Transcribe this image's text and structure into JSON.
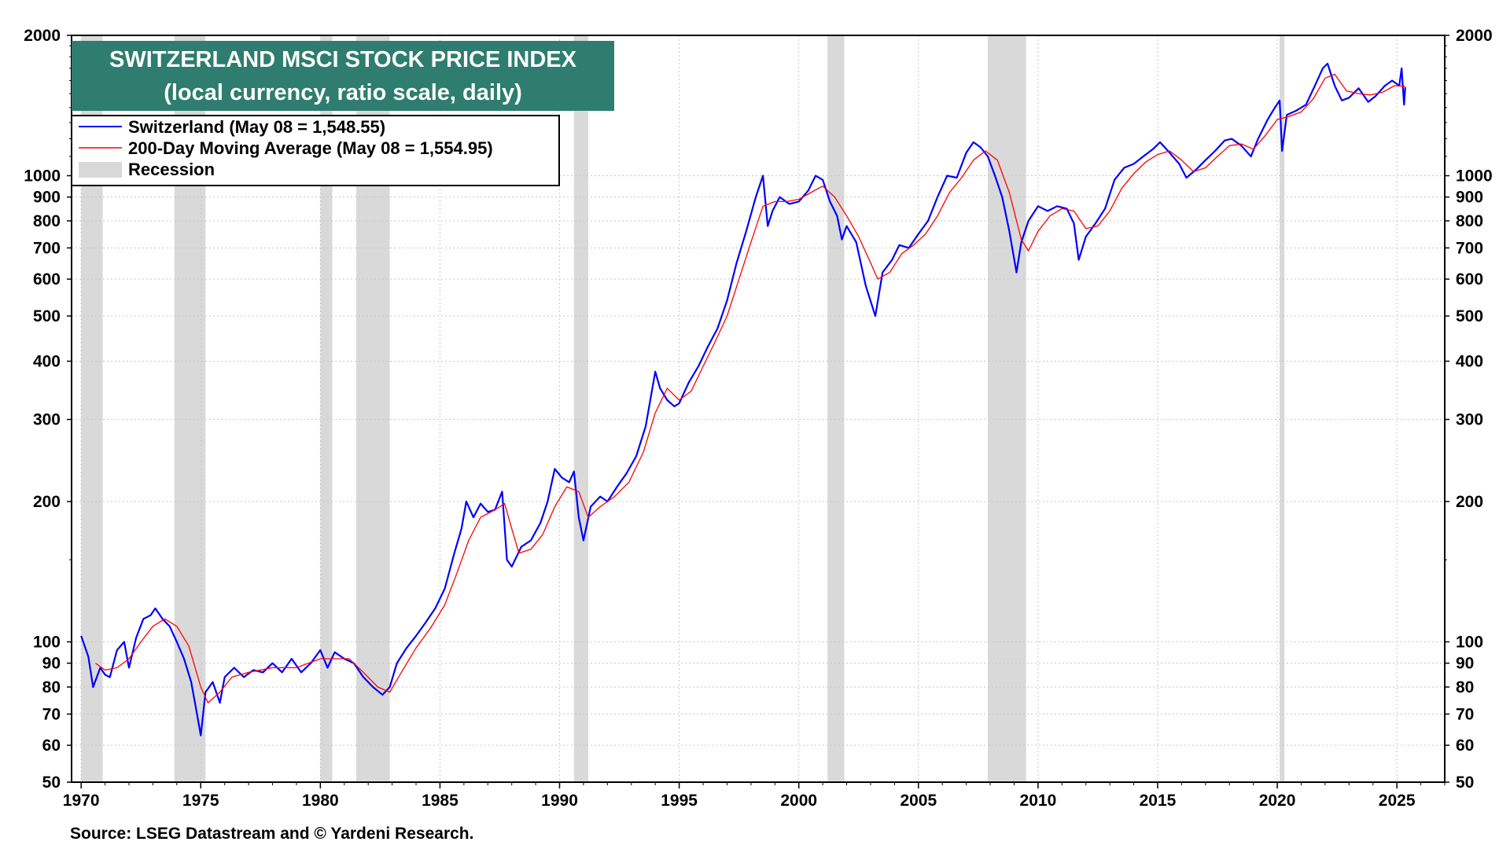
{
  "chart_data": {
    "type": "line",
    "title": "SWITZERLAND MSCI STOCK PRICE INDEX",
    "subtitle": "(local currency, ratio scale, daily)",
    "y_scale": "log",
    "ylim": [
      50,
      2000
    ],
    "xlim": [
      1969.6,
      2027.0
    ],
    "y_ticks": [
      50,
      60,
      70,
      80,
      90,
      100,
      200,
      300,
      400,
      500,
      600,
      700,
      800,
      900,
      1000,
      2000
    ],
    "y_tick_labels": [
      "50",
      "60",
      "70",
      "80",
      "90",
      "100",
      "200",
      "300",
      "400",
      "500",
      "600",
      "700",
      "800",
      "900",
      "1000",
      "2000"
    ],
    "x_ticks": [
      1970,
      1975,
      1980,
      1985,
      1990,
      1995,
      2000,
      2005,
      2010,
      2015,
      2020,
      2025
    ],
    "x_tick_labels": [
      "1970",
      "1975",
      "1980",
      "1985",
      "1990",
      "1995",
      "2000",
      "2005",
      "2010",
      "2015",
      "2020",
      "2025"
    ],
    "legend": {
      "placement": "top-left",
      "items": [
        {
          "label": "Switzerland (May 08 = 1,548.55)",
          "kind": "line",
          "color": "#0000ff"
        },
        {
          "label": "200-Day Moving Average (May 08 = 1,554.95)",
          "kind": "line",
          "color": "#ff0000"
        },
        {
          "label": "Recession",
          "kind": "patch",
          "color": "#d9d9d9"
        }
      ]
    },
    "recessions": [
      {
        "start": 1970.0,
        "end": 1970.9
      },
      {
        "start": 1973.9,
        "end": 1975.2
      },
      {
        "start": 1980.0,
        "end": 1980.5
      },
      {
        "start": 1981.5,
        "end": 1982.9
      },
      {
        "start": 1990.6,
        "end": 1991.2
      },
      {
        "start": 2001.2,
        "end": 2001.9
      },
      {
        "start": 2007.9,
        "end": 2009.5
      },
      {
        "start": 2020.1,
        "end": 2020.3
      }
    ],
    "series": [
      {
        "name": "Switzerland",
        "color": "#0000ff",
        "points": [
          [
            1970.0,
            103
          ],
          [
            1970.3,
            93
          ],
          [
            1970.5,
            80
          ],
          [
            1970.8,
            88
          ],
          [
            1971.0,
            85
          ],
          [
            1971.2,
            84
          ],
          [
            1971.5,
            96
          ],
          [
            1971.8,
            100
          ],
          [
            1972.0,
            88
          ],
          [
            1972.3,
            102
          ],
          [
            1972.6,
            112
          ],
          [
            1972.9,
            114
          ],
          [
            1973.1,
            118
          ],
          [
            1973.4,
            112
          ],
          [
            1973.7,
            108
          ],
          [
            1974.0,
            100
          ],
          [
            1974.3,
            92
          ],
          [
            1974.6,
            82
          ],
          [
            1974.8,
            72
          ],
          [
            1975.0,
            63
          ],
          [
            1975.2,
            78
          ],
          [
            1975.5,
            82
          ],
          [
            1975.8,
            74
          ],
          [
            1976.0,
            84
          ],
          [
            1976.4,
            88
          ],
          [
            1976.8,
            84
          ],
          [
            1977.2,
            87
          ],
          [
            1977.6,
            86
          ],
          [
            1978.0,
            90
          ],
          [
            1978.4,
            86
          ],
          [
            1978.8,
            92
          ],
          [
            1979.2,
            86
          ],
          [
            1979.6,
            90
          ],
          [
            1980.0,
            96
          ],
          [
            1980.3,
            88
          ],
          [
            1980.6,
            95
          ],
          [
            1981.0,
            92
          ],
          [
            1981.4,
            90
          ],
          [
            1981.8,
            84
          ],
          [
            1982.2,
            80
          ],
          [
            1982.6,
            77
          ],
          [
            1982.9,
            80
          ],
          [
            1983.2,
            90
          ],
          [
            1983.6,
            97
          ],
          [
            1984.0,
            103
          ],
          [
            1984.4,
            110
          ],
          [
            1984.8,
            118
          ],
          [
            1985.2,
            130
          ],
          [
            1985.6,
            155
          ],
          [
            1985.9,
            175
          ],
          [
            1986.1,
            200
          ],
          [
            1986.4,
            185
          ],
          [
            1986.7,
            198
          ],
          [
            1987.0,
            190
          ],
          [
            1987.3,
            192
          ],
          [
            1987.6,
            210
          ],
          [
            1987.8,
            150
          ],
          [
            1988.0,
            145
          ],
          [
            1988.4,
            160
          ],
          [
            1988.8,
            165
          ],
          [
            1989.2,
            180
          ],
          [
            1989.5,
            200
          ],
          [
            1989.8,
            235
          ],
          [
            1990.1,
            225
          ],
          [
            1990.4,
            220
          ],
          [
            1990.6,
            232
          ],
          [
            1990.8,
            185
          ],
          [
            1991.0,
            165
          ],
          [
            1991.3,
            195
          ],
          [
            1991.7,
            205
          ],
          [
            1992.0,
            200
          ],
          [
            1992.4,
            215
          ],
          [
            1992.8,
            230
          ],
          [
            1993.2,
            250
          ],
          [
            1993.6,
            290
          ],
          [
            1994.0,
            380
          ],
          [
            1994.2,
            350
          ],
          [
            1994.5,
            330
          ],
          [
            1994.8,
            320
          ],
          [
            1995.0,
            325
          ],
          [
            1995.4,
            360
          ],
          [
            1995.8,
            390
          ],
          [
            1996.2,
            430
          ],
          [
            1996.6,
            470
          ],
          [
            1997.0,
            540
          ],
          [
            1997.4,
            650
          ],
          [
            1997.8,
            760
          ],
          [
            1998.2,
            900
          ],
          [
            1998.5,
            1000
          ],
          [
            1998.7,
            780
          ],
          [
            1998.9,
            840
          ],
          [
            1999.2,
            900
          ],
          [
            1999.6,
            870
          ],
          [
            2000.0,
            880
          ],
          [
            2000.4,
            930
          ],
          [
            2000.7,
            1000
          ],
          [
            2001.0,
            980
          ],
          [
            2001.3,
            880
          ],
          [
            2001.6,
            820
          ],
          [
            2001.8,
            730
          ],
          [
            2002.0,
            780
          ],
          [
            2002.4,
            720
          ],
          [
            2002.8,
            580
          ],
          [
            2003.2,
            500
          ],
          [
            2003.5,
            620
          ],
          [
            2003.9,
            660
          ],
          [
            2004.2,
            710
          ],
          [
            2004.6,
            700
          ],
          [
            2005.0,
            750
          ],
          [
            2005.4,
            800
          ],
          [
            2005.8,
            900
          ],
          [
            2006.2,
            1000
          ],
          [
            2006.6,
            990
          ],
          [
            2007.0,
            1120
          ],
          [
            2007.3,
            1180
          ],
          [
            2007.6,
            1150
          ],
          [
            2007.9,
            1100
          ],
          [
            2008.2,
            1000
          ],
          [
            2008.5,
            900
          ],
          [
            2008.8,
            760
          ],
          [
            2009.1,
            620
          ],
          [
            2009.3,
            720
          ],
          [
            2009.6,
            800
          ],
          [
            2010.0,
            860
          ],
          [
            2010.4,
            840
          ],
          [
            2010.8,
            860
          ],
          [
            2011.2,
            850
          ],
          [
            2011.5,
            790
          ],
          [
            2011.7,
            660
          ],
          [
            2012.0,
            740
          ],
          [
            2012.4,
            790
          ],
          [
            2012.8,
            850
          ],
          [
            2013.2,
            980
          ],
          [
            2013.6,
            1040
          ],
          [
            2014.0,
            1060
          ],
          [
            2014.4,
            1100
          ],
          [
            2014.8,
            1140
          ],
          [
            2015.1,
            1180
          ],
          [
            2015.5,
            1120
          ],
          [
            2015.9,
            1060
          ],
          [
            2016.2,
            990
          ],
          [
            2016.6,
            1030
          ],
          [
            2017.0,
            1080
          ],
          [
            2017.4,
            1130
          ],
          [
            2017.8,
            1190
          ],
          [
            2018.1,
            1200
          ],
          [
            2018.5,
            1160
          ],
          [
            2018.9,
            1100
          ],
          [
            2019.2,
            1200
          ],
          [
            2019.6,
            1320
          ],
          [
            2019.9,
            1400
          ],
          [
            2020.1,
            1450
          ],
          [
            2020.2,
            1130
          ],
          [
            2020.4,
            1350
          ],
          [
            2020.8,
            1380
          ],
          [
            2021.2,
            1420
          ],
          [
            2021.6,
            1570
          ],
          [
            2021.9,
            1700
          ],
          [
            2022.1,
            1740
          ],
          [
            2022.4,
            1560
          ],
          [
            2022.7,
            1450
          ],
          [
            2023.0,
            1470
          ],
          [
            2023.4,
            1540
          ],
          [
            2023.8,
            1440
          ],
          [
            2024.1,
            1480
          ],
          [
            2024.5,
            1560
          ],
          [
            2024.8,
            1600
          ],
          [
            2025.1,
            1560
          ],
          [
            2025.2,
            1700
          ],
          [
            2025.3,
            1420
          ],
          [
            2025.35,
            1548
          ]
        ]
      },
      {
        "name": "200-Day Moving Average",
        "color": "#ff0000",
        "points": [
          [
            1970.6,
            90
          ],
          [
            1971.0,
            87
          ],
          [
            1971.5,
            88
          ],
          [
            1972.0,
            92
          ],
          [
            1972.5,
            100
          ],
          [
            1973.0,
            108
          ],
          [
            1973.5,
            112
          ],
          [
            1974.0,
            108
          ],
          [
            1974.5,
            98
          ],
          [
            1975.0,
            80
          ],
          [
            1975.3,
            74
          ],
          [
            1975.8,
            78
          ],
          [
            1976.3,
            84
          ],
          [
            1977.0,
            86
          ],
          [
            1978.0,
            88
          ],
          [
            1979.0,
            88
          ],
          [
            1980.0,
            92
          ],
          [
            1980.6,
            92
          ],
          [
            1981.2,
            92
          ],
          [
            1981.8,
            86
          ],
          [
            1982.4,
            80
          ],
          [
            1982.9,
            78
          ],
          [
            1983.5,
            88
          ],
          [
            1984.0,
            97
          ],
          [
            1984.6,
            107
          ],
          [
            1985.2,
            120
          ],
          [
            1985.7,
            140
          ],
          [
            1986.2,
            165
          ],
          [
            1986.7,
            185
          ],
          [
            1987.3,
            192
          ],
          [
            1987.7,
            198
          ],
          [
            1988.0,
            175
          ],
          [
            1988.3,
            155
          ],
          [
            1988.8,
            158
          ],
          [
            1989.3,
            170
          ],
          [
            1989.8,
            195
          ],
          [
            1990.3,
            215
          ],
          [
            1990.8,
            210
          ],
          [
            1991.2,
            185
          ],
          [
            1991.7,
            195
          ],
          [
            1992.3,
            205
          ],
          [
            1992.9,
            220
          ],
          [
            1993.5,
            255
          ],
          [
            1994.0,
            310
          ],
          [
            1994.5,
            350
          ],
          [
            1995.0,
            330
          ],
          [
            1995.5,
            345
          ],
          [
            1996.0,
            390
          ],
          [
            1996.5,
            440
          ],
          [
            1997.0,
            500
          ],
          [
            1997.5,
            600
          ],
          [
            1998.0,
            720
          ],
          [
            1998.5,
            860
          ],
          [
            1999.0,
            880
          ],
          [
            1999.5,
            880
          ],
          [
            2000.0,
            890
          ],
          [
            2000.5,
            920
          ],
          [
            2001.0,
            950
          ],
          [
            2001.5,
            900
          ],
          [
            2002.0,
            820
          ],
          [
            2002.5,
            740
          ],
          [
            2003.0,
            650
          ],
          [
            2003.3,
            600
          ],
          [
            2003.8,
            620
          ],
          [
            2004.3,
            680
          ],
          [
            2004.8,
            710
          ],
          [
            2005.3,
            750
          ],
          [
            2005.8,
            820
          ],
          [
            2006.3,
            920
          ],
          [
            2006.8,
            990
          ],
          [
            2007.3,
            1080
          ],
          [
            2007.8,
            1130
          ],
          [
            2008.3,
            1080
          ],
          [
            2008.8,
            920
          ],
          [
            2009.3,
            730
          ],
          [
            2009.6,
            690
          ],
          [
            2010.0,
            760
          ],
          [
            2010.5,
            820
          ],
          [
            2011.0,
            850
          ],
          [
            2011.5,
            840
          ],
          [
            2012.0,
            770
          ],
          [
            2012.5,
            780
          ],
          [
            2013.0,
            840
          ],
          [
            2013.5,
            940
          ],
          [
            2014.0,
            1010
          ],
          [
            2014.5,
            1070
          ],
          [
            2015.0,
            1110
          ],
          [
            2015.5,
            1130
          ],
          [
            2016.0,
            1080
          ],
          [
            2016.5,
            1020
          ],
          [
            2017.0,
            1040
          ],
          [
            2017.5,
            1100
          ],
          [
            2018.0,
            1160
          ],
          [
            2018.5,
            1170
          ],
          [
            2019.0,
            1140
          ],
          [
            2019.5,
            1220
          ],
          [
            2020.0,
            1320
          ],
          [
            2020.5,
            1340
          ],
          [
            2021.0,
            1370
          ],
          [
            2021.5,
            1460
          ],
          [
            2022.0,
            1620
          ],
          [
            2022.4,
            1650
          ],
          [
            2022.9,
            1520
          ],
          [
            2023.4,
            1500
          ],
          [
            2023.9,
            1490
          ],
          [
            2024.4,
            1510
          ],
          [
            2024.9,
            1560
          ],
          [
            2025.35,
            1555
          ]
        ]
      }
    ],
    "source": "Source: LSEG Datastream and © Yardeni Research."
  }
}
